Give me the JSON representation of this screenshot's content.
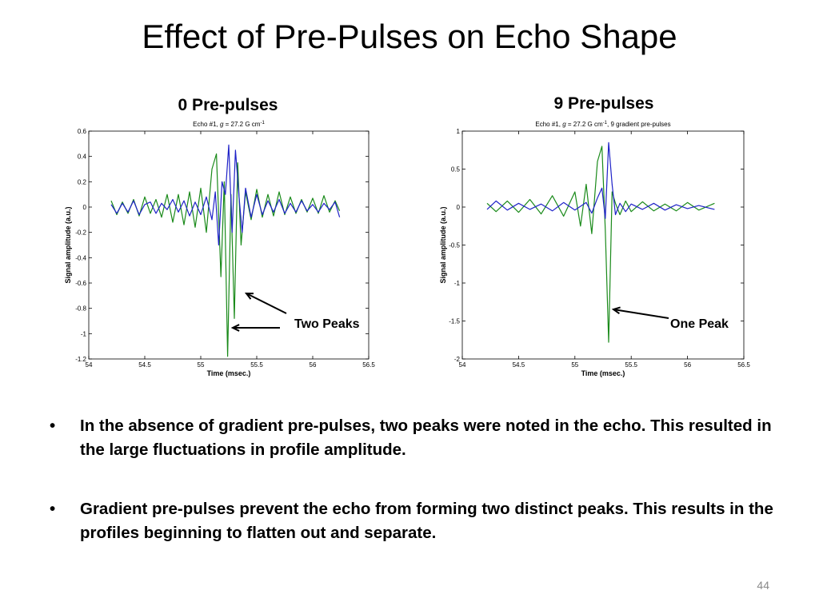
{
  "slide": {
    "title": "Effect of Pre-Pulses on Echo Shape",
    "page_number": "44",
    "bullets": [
      "In the absence of gradient pre-pulses, two peaks were noted in the echo. This resulted in the large fluctuations in profile amplitude.",
      "Gradient pre-pulses prevent the echo from forming two distinct peaks. This results in the profiles beginning to flatten out and separate."
    ]
  },
  "panels": {
    "left_heading": "0 Pre-pulses",
    "right_heading": "9 Pre-pulses"
  },
  "chart_data": [
    {
      "type": "line",
      "title": "Echo #1, g = 27.2 G cm-1",
      "title_parts": {
        "prefix": "Echo #1, ",
        "var": "g",
        "mid": " = 27.2 G cm",
        "sup": "-1",
        "suffix": ""
      },
      "xlabel": "Time (msec.)",
      "ylabel": "Signal amplitude (a.u.)",
      "xlim": [
        54,
        56.5
      ],
      "ylim": [
        -1.2,
        0.6
      ],
      "xticks": [
        54,
        54.5,
        55,
        55.5,
        56,
        56.5
      ],
      "yticks": [
        0.6,
        0.4,
        0.2,
        0,
        -0.2,
        -0.4,
        -0.6,
        -0.8,
        -1,
        -1.2
      ],
      "grid": false,
      "annotation": "Two Peaks",
      "series": [
        {
          "color": "#1f22c8",
          "x": [
            54.2,
            54.25,
            54.3,
            54.35,
            54.4,
            54.45,
            54.5,
            54.55,
            54.6,
            54.65,
            54.7,
            54.75,
            54.8,
            54.85,
            54.9,
            54.95,
            55.0,
            55.05,
            55.1,
            55.13,
            55.16,
            55.19,
            55.22,
            55.25,
            55.28,
            55.31,
            55.34,
            55.37,
            55.4,
            55.45,
            55.5,
            55.55,
            55.6,
            55.65,
            55.7,
            55.75,
            55.8,
            55.85,
            55.9,
            55.95,
            56.0,
            56.05,
            56.1,
            56.15,
            56.2,
            56.24
          ],
          "y": [
            0.02,
            -0.05,
            0.03,
            -0.04,
            0.05,
            -0.06,
            0.02,
            0.04,
            -0.05,
            0.03,
            -0.02,
            0.06,
            -0.04,
            0.05,
            -0.07,
            0.04,
            -0.06,
            0.08,
            -0.1,
            0.12,
            -0.3,
            0.2,
            0.1,
            0.49,
            -0.2,
            0.45,
            0.1,
            -0.2,
            0.15,
            -0.08,
            0.1,
            -0.06,
            0.05,
            -0.04,
            0.06,
            -0.05,
            0.03,
            -0.04,
            0.05,
            -0.03,
            0.02,
            -0.04,
            0.03,
            -0.02,
            0.04,
            -0.08
          ]
        },
        {
          "color": "#1a8a1a",
          "x": [
            54.2,
            54.25,
            54.3,
            54.35,
            54.4,
            54.45,
            54.5,
            54.55,
            54.6,
            54.65,
            54.7,
            54.75,
            54.8,
            54.85,
            54.9,
            54.95,
            55.0,
            55.05,
            55.1,
            55.14,
            55.18,
            55.21,
            55.24,
            55.27,
            55.3,
            55.33,
            55.36,
            55.4,
            55.45,
            55.5,
            55.55,
            55.6,
            55.65,
            55.7,
            55.75,
            55.8,
            55.85,
            55.9,
            55.95,
            56.0,
            56.05,
            56.1,
            56.15,
            56.2,
            56.24
          ],
          "y": [
            0.05,
            -0.06,
            0.04,
            -0.05,
            0.06,
            -0.07,
            0.08,
            -0.05,
            0.06,
            -0.08,
            0.1,
            -0.12,
            0.1,
            -0.14,
            0.12,
            -0.16,
            0.15,
            -0.2,
            0.3,
            0.42,
            -0.55,
            0.2,
            -1.18,
            0.1,
            -0.88,
            0.35,
            -0.3,
            0.12,
            -0.1,
            0.14,
            -0.08,
            0.1,
            -0.07,
            0.12,
            -0.06,
            0.08,
            -0.05,
            0.06,
            -0.04,
            0.07,
            -0.05,
            0.09,
            -0.04,
            0.05,
            -0.03
          ]
        }
      ]
    },
    {
      "type": "line",
      "title": "Echo #1, g = 27.2 G cm-1, 9 gradient pre-pulses",
      "title_parts": {
        "prefix": "Echo #1, ",
        "var": "g",
        "mid": " = 27.2 G cm",
        "sup": "-1",
        "suffix": ", 9 gradient pre-pulses"
      },
      "xlabel": "Time (msec.)",
      "ylabel": "Signal amplitude (a.u.)",
      "xlim": [
        54,
        56.5
      ],
      "ylim": [
        -2,
        1
      ],
      "xticks": [
        54,
        54.5,
        55,
        55.5,
        56,
        56.5
      ],
      "yticks": [
        1,
        0.5,
        0,
        -0.5,
        -1,
        -1.5,
        -2
      ],
      "grid": false,
      "annotation": "One Peak",
      "series": [
        {
          "color": "#1f22c8",
          "x": [
            54.22,
            54.3,
            54.4,
            54.5,
            54.6,
            54.7,
            54.8,
            54.9,
            55.0,
            55.1,
            55.15,
            55.2,
            55.24,
            55.27,
            55.3,
            55.33,
            55.36,
            55.4,
            55.45,
            55.5,
            55.6,
            55.7,
            55.8,
            55.9,
            56.0,
            56.1,
            56.24
          ],
          "y": [
            -0.03,
            0.08,
            -0.04,
            0.05,
            -0.03,
            0.04,
            -0.05,
            0.06,
            -0.04,
            0.06,
            -0.08,
            0.12,
            0.25,
            -0.15,
            0.85,
            0.3,
            -0.1,
            0.05,
            -0.06,
            0.04,
            -0.03,
            0.05,
            -0.04,
            0.03,
            -0.02,
            0.02,
            -0.03
          ]
        },
        {
          "color": "#1a8a1a",
          "x": [
            54.22,
            54.3,
            54.4,
            54.5,
            54.6,
            54.7,
            54.8,
            54.9,
            55.0,
            55.05,
            55.1,
            55.15,
            55.2,
            55.24,
            55.27,
            55.3,
            55.33,
            55.36,
            55.4,
            55.45,
            55.5,
            55.6,
            55.7,
            55.8,
            55.9,
            56.0,
            56.1,
            56.24
          ],
          "y": [
            0.05,
            -0.06,
            0.08,
            -0.07,
            0.1,
            -0.09,
            0.15,
            -0.12,
            0.2,
            -0.25,
            0.3,
            -0.35,
            0.6,
            0.8,
            -0.3,
            -1.78,
            0.2,
            0.05,
            -0.1,
            0.08,
            -0.06,
            0.07,
            -0.05,
            0.04,
            -0.05,
            0.06,
            -0.04,
            0.05
          ]
        }
      ]
    }
  ]
}
